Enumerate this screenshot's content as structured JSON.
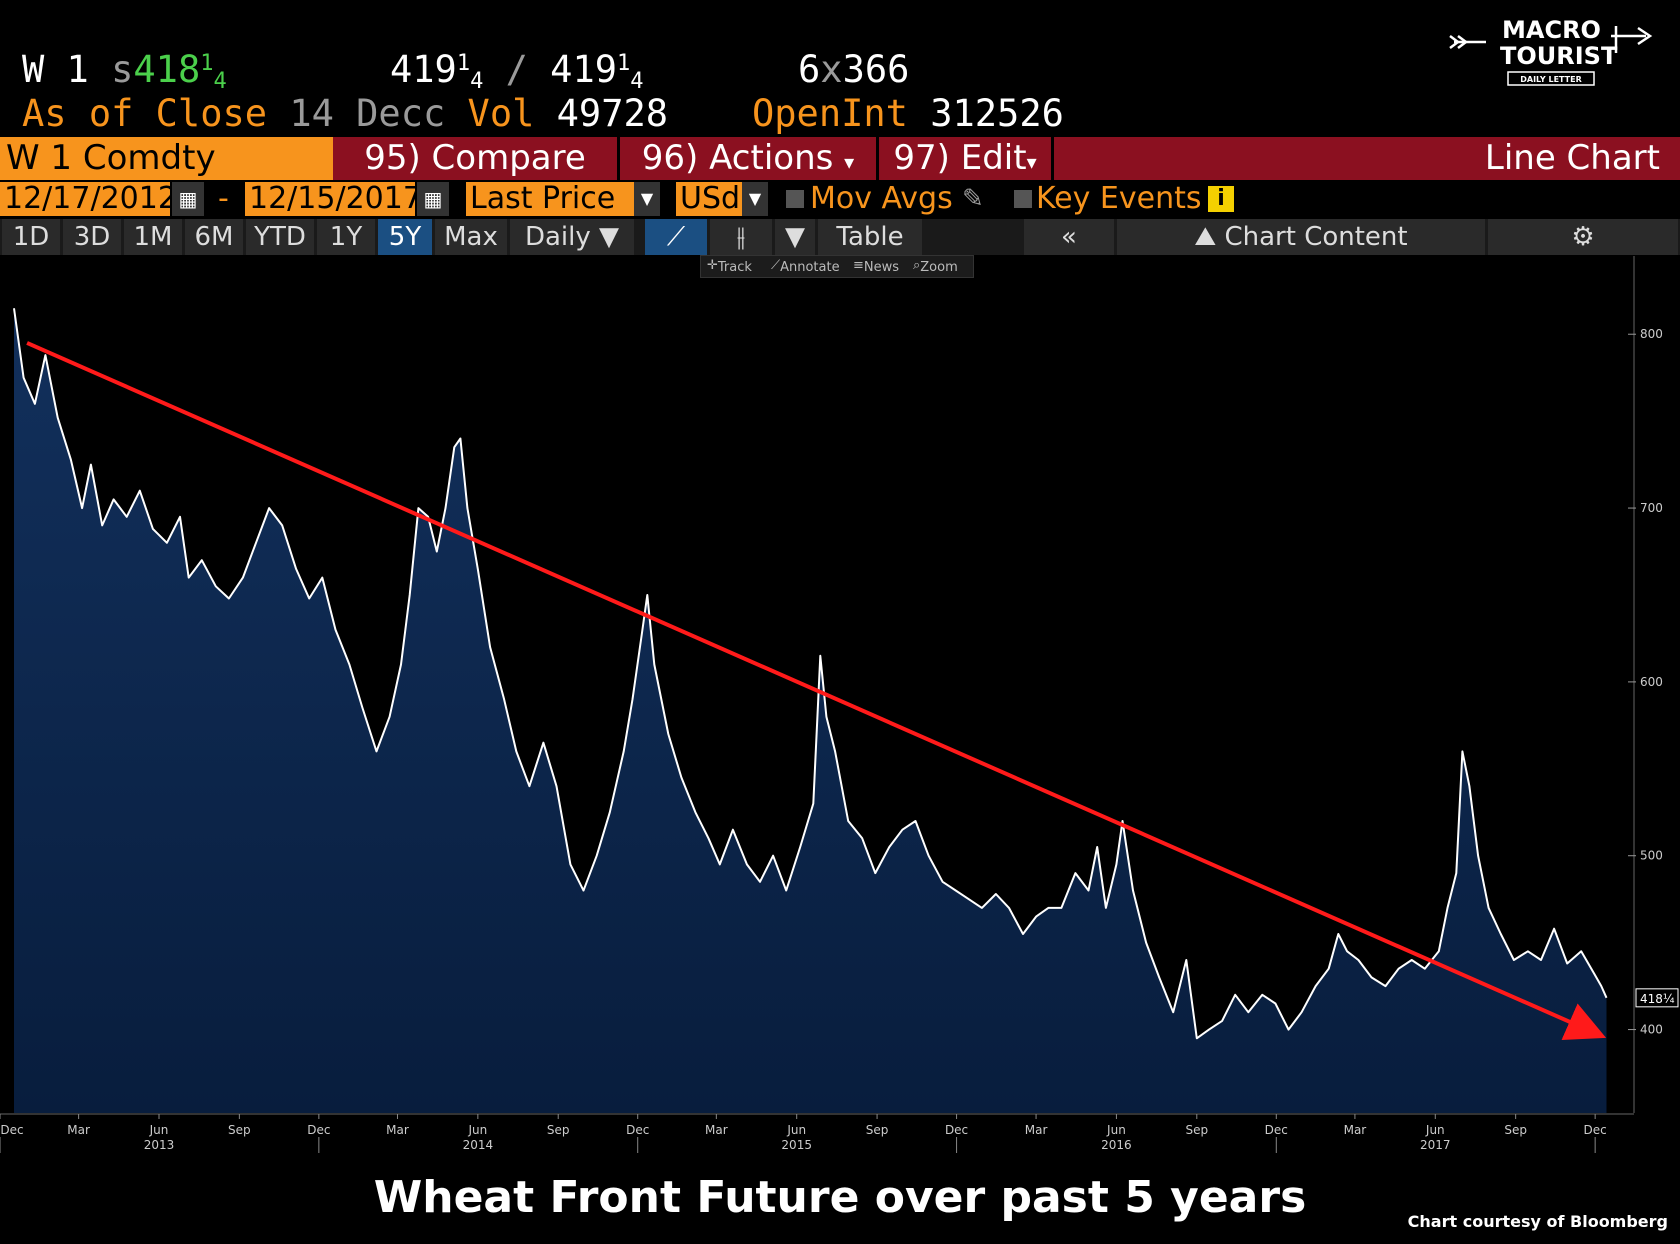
{
  "header": {
    "ticker": "W 1",
    "last_prefix": "s",
    "last_whole": "418",
    "last_frac_top": "1",
    "last_frac_bottom": "4",
    "bid_whole": "419",
    "bid_frac_top": "1",
    "bid_frac_bottom": "4",
    "sep": "/",
    "ask_whole": "419",
    "ask_frac_top": "1",
    "ask_frac_bottom": "4",
    "size_left": "6",
    "size_x": "x",
    "size_right": "366",
    "as_of": "As of Close",
    "as_of_date": "14 Decc",
    "vol_label": "Vol",
    "vol_value": "49728",
    "openint_label": "OpenInt",
    "openint_value": "312526"
  },
  "toolbar": {
    "security": "W 1 Comdty",
    "compare": "95) Compare",
    "actions": "96) Actions",
    "edit": "97) Edit",
    "chart_type": "Line Chart"
  },
  "range": {
    "start": "12/17/2012",
    "dash": "-",
    "end": "12/15/2017",
    "field": "Last Price",
    "currency": "USd",
    "mov_avgs": "Mov Avgs",
    "key_events": "Key Events"
  },
  "periods": [
    "1D",
    "3D",
    "1M",
    "6M",
    "YTD",
    "1Y",
    "5Y",
    "Max"
  ],
  "selected_period": "5Y",
  "frequency": "Daily",
  "table_label": "Table",
  "chart_content_label": "Chart Content",
  "tools": {
    "track": "Track",
    "annotate": "Annotate",
    "news": "News",
    "zoom": "Zoom"
  },
  "logo": {
    "line1": "MACRO",
    "line2": "TOURIST",
    "line3": "DAILY LETTER"
  },
  "caption": "Wheat Front Future over past 5 years",
  "credit": "Chart courtesy of Bloomberg",
  "colors": {
    "fill": "#0b2447",
    "line": "#ffffff",
    "trend": "#ff1a1a",
    "accent": "#f7941d",
    "panel": "#8b1020"
  },
  "chart_data": {
    "type": "area",
    "ylim": [
      352,
      845
    ],
    "yticks": [
      400,
      500,
      600,
      700,
      800
    ],
    "last_label": "418¼",
    "x_tick_labels": [
      "Dec",
      "Mar",
      "Jun",
      "Sep",
      "Dec",
      "Mar",
      "Jun",
      "Sep",
      "Dec",
      "Mar",
      "Jun",
      "Sep",
      "Dec",
      "Mar",
      "Jun",
      "Sep",
      "Dec",
      "Mar",
      "Jun",
      "Sep",
      "Dec"
    ],
    "x_tick_dates": [
      "2012-12-01",
      "2013-03-01",
      "2013-06-01",
      "2013-09-01",
      "2013-12-01",
      "2014-03-01",
      "2014-06-01",
      "2014-09-01",
      "2014-12-01",
      "2015-03-01",
      "2015-06-01",
      "2015-09-01",
      "2015-12-01",
      "2016-03-01",
      "2016-06-01",
      "2016-09-01",
      "2016-12-01",
      "2017-03-01",
      "2017-06-01",
      "2017-09-01",
      "2017-12-01"
    ],
    "year_labels": [
      "2013",
      "2014",
      "2015",
      "2016",
      "2017"
    ],
    "year_dates": [
      "2013-06-01",
      "2014-06-01",
      "2015-06-01",
      "2016-06-01",
      "2017-06-01"
    ],
    "xrange": [
      "2012-12-01",
      "2017-12-18"
    ],
    "series": [
      {
        "name": "W 1 Comdty",
        "points": [
          [
            "2012-12-17",
            815
          ],
          [
            "2012-12-28",
            775
          ],
          [
            "2013-01-10",
            760
          ],
          [
            "2013-01-22",
            788
          ],
          [
            "2013-02-05",
            752
          ],
          [
            "2013-02-20",
            728
          ],
          [
            "2013-03-05",
            700
          ],
          [
            "2013-03-15",
            725
          ],
          [
            "2013-03-28",
            690
          ],
          [
            "2013-04-10",
            705
          ],
          [
            "2013-04-25",
            695
          ],
          [
            "2013-05-10",
            710
          ],
          [
            "2013-05-25",
            688
          ],
          [
            "2013-06-10",
            680
          ],
          [
            "2013-06-25",
            695
          ],
          [
            "2013-07-05",
            660
          ],
          [
            "2013-07-20",
            670
          ],
          [
            "2013-08-05",
            655
          ],
          [
            "2013-08-20",
            648
          ],
          [
            "2013-09-05",
            660
          ],
          [
            "2013-09-20",
            680
          ],
          [
            "2013-10-05",
            700
          ],
          [
            "2013-10-20",
            690
          ],
          [
            "2013-11-05",
            665
          ],
          [
            "2013-11-20",
            648
          ],
          [
            "2013-12-05",
            660
          ],
          [
            "2013-12-20",
            630
          ],
          [
            "2014-01-05",
            610
          ],
          [
            "2014-01-20",
            585
          ],
          [
            "2014-02-05",
            560
          ],
          [
            "2014-02-20",
            580
          ],
          [
            "2014-03-05",
            610
          ],
          [
            "2014-03-15",
            650
          ],
          [
            "2014-03-25",
            700
          ],
          [
            "2014-04-05",
            695
          ],
          [
            "2014-04-15",
            675
          ],
          [
            "2014-04-25",
            700
          ],
          [
            "2014-05-05",
            735
          ],
          [
            "2014-05-12",
            740
          ],
          [
            "2014-05-20",
            700
          ],
          [
            "2014-06-01",
            665
          ],
          [
            "2014-06-15",
            620
          ],
          [
            "2014-07-01",
            590
          ],
          [
            "2014-07-15",
            560
          ],
          [
            "2014-07-30",
            540
          ],
          [
            "2014-08-15",
            565
          ],
          [
            "2014-08-30",
            540
          ],
          [
            "2014-09-15",
            495
          ],
          [
            "2014-09-30",
            480
          ],
          [
            "2014-10-15",
            500
          ],
          [
            "2014-10-30",
            525
          ],
          [
            "2014-11-15",
            560
          ],
          [
            "2014-11-25",
            590
          ],
          [
            "2014-12-05",
            625
          ],
          [
            "2014-12-12",
            650
          ],
          [
            "2014-12-20",
            610
          ],
          [
            "2015-01-05",
            570
          ],
          [
            "2015-01-20",
            545
          ],
          [
            "2015-02-05",
            525
          ],
          [
            "2015-02-20",
            510
          ],
          [
            "2015-03-05",
            495
          ],
          [
            "2015-03-20",
            515
          ],
          [
            "2015-04-05",
            495
          ],
          [
            "2015-04-20",
            485
          ],
          [
            "2015-05-05",
            500
          ],
          [
            "2015-05-20",
            480
          ],
          [
            "2015-06-05",
            505
          ],
          [
            "2015-06-20",
            530
          ],
          [
            "2015-06-28",
            615
          ],
          [
            "2015-07-05",
            580
          ],
          [
            "2015-07-15",
            560
          ],
          [
            "2015-07-30",
            520
          ],
          [
            "2015-08-15",
            510
          ],
          [
            "2015-08-30",
            490
          ],
          [
            "2015-09-15",
            505
          ],
          [
            "2015-09-30",
            515
          ],
          [
            "2015-10-15",
            520
          ],
          [
            "2015-10-30",
            500
          ],
          [
            "2015-11-15",
            485
          ],
          [
            "2015-11-30",
            480
          ],
          [
            "2015-12-15",
            475
          ],
          [
            "2015-12-30",
            470
          ],
          [
            "2016-01-15",
            478
          ],
          [
            "2016-01-30",
            470
          ],
          [
            "2016-02-15",
            455
          ],
          [
            "2016-03-01",
            465
          ],
          [
            "2016-03-15",
            470
          ],
          [
            "2016-03-30",
            470
          ],
          [
            "2016-04-15",
            490
          ],
          [
            "2016-04-30",
            480
          ],
          [
            "2016-05-10",
            505
          ],
          [
            "2016-05-20",
            470
          ],
          [
            "2016-06-01",
            495
          ],
          [
            "2016-06-08",
            520
          ],
          [
            "2016-06-20",
            480
          ],
          [
            "2016-07-05",
            450
          ],
          [
            "2016-07-20",
            430
          ],
          [
            "2016-08-05",
            410
          ],
          [
            "2016-08-20",
            440
          ],
          [
            "2016-09-01",
            395
          ],
          [
            "2016-09-15",
            400
          ],
          [
            "2016-09-30",
            405
          ],
          [
            "2016-10-15",
            420
          ],
          [
            "2016-10-30",
            410
          ],
          [
            "2016-11-15",
            420
          ],
          [
            "2016-11-30",
            415
          ],
          [
            "2016-12-15",
            400
          ],
          [
            "2016-12-30",
            410
          ],
          [
            "2017-01-15",
            425
          ],
          [
            "2017-01-30",
            435
          ],
          [
            "2017-02-10",
            455
          ],
          [
            "2017-02-20",
            445
          ],
          [
            "2017-03-05",
            440
          ],
          [
            "2017-03-20",
            430
          ],
          [
            "2017-04-05",
            425
          ],
          [
            "2017-04-20",
            435
          ],
          [
            "2017-05-05",
            440
          ],
          [
            "2017-05-20",
            435
          ],
          [
            "2017-06-05",
            445
          ],
          [
            "2017-06-15",
            470
          ],
          [
            "2017-06-25",
            490
          ],
          [
            "2017-07-02",
            560
          ],
          [
            "2017-07-10",
            540
          ],
          [
            "2017-07-20",
            500
          ],
          [
            "2017-08-01",
            470
          ],
          [
            "2017-08-15",
            455
          ],
          [
            "2017-08-30",
            440
          ],
          [
            "2017-09-15",
            445
          ],
          [
            "2017-09-30",
            440
          ],
          [
            "2017-10-15",
            458
          ],
          [
            "2017-10-30",
            438
          ],
          [
            "2017-11-15",
            445
          ],
          [
            "2017-11-30",
            432
          ],
          [
            "2017-12-08",
            425
          ],
          [
            "2017-12-14",
            418.25
          ]
        ]
      }
    ],
    "trendline": {
      "start": [
        "2013-01-01",
        795
      ],
      "end": [
        "2017-12-01",
        398
      ]
    }
  }
}
